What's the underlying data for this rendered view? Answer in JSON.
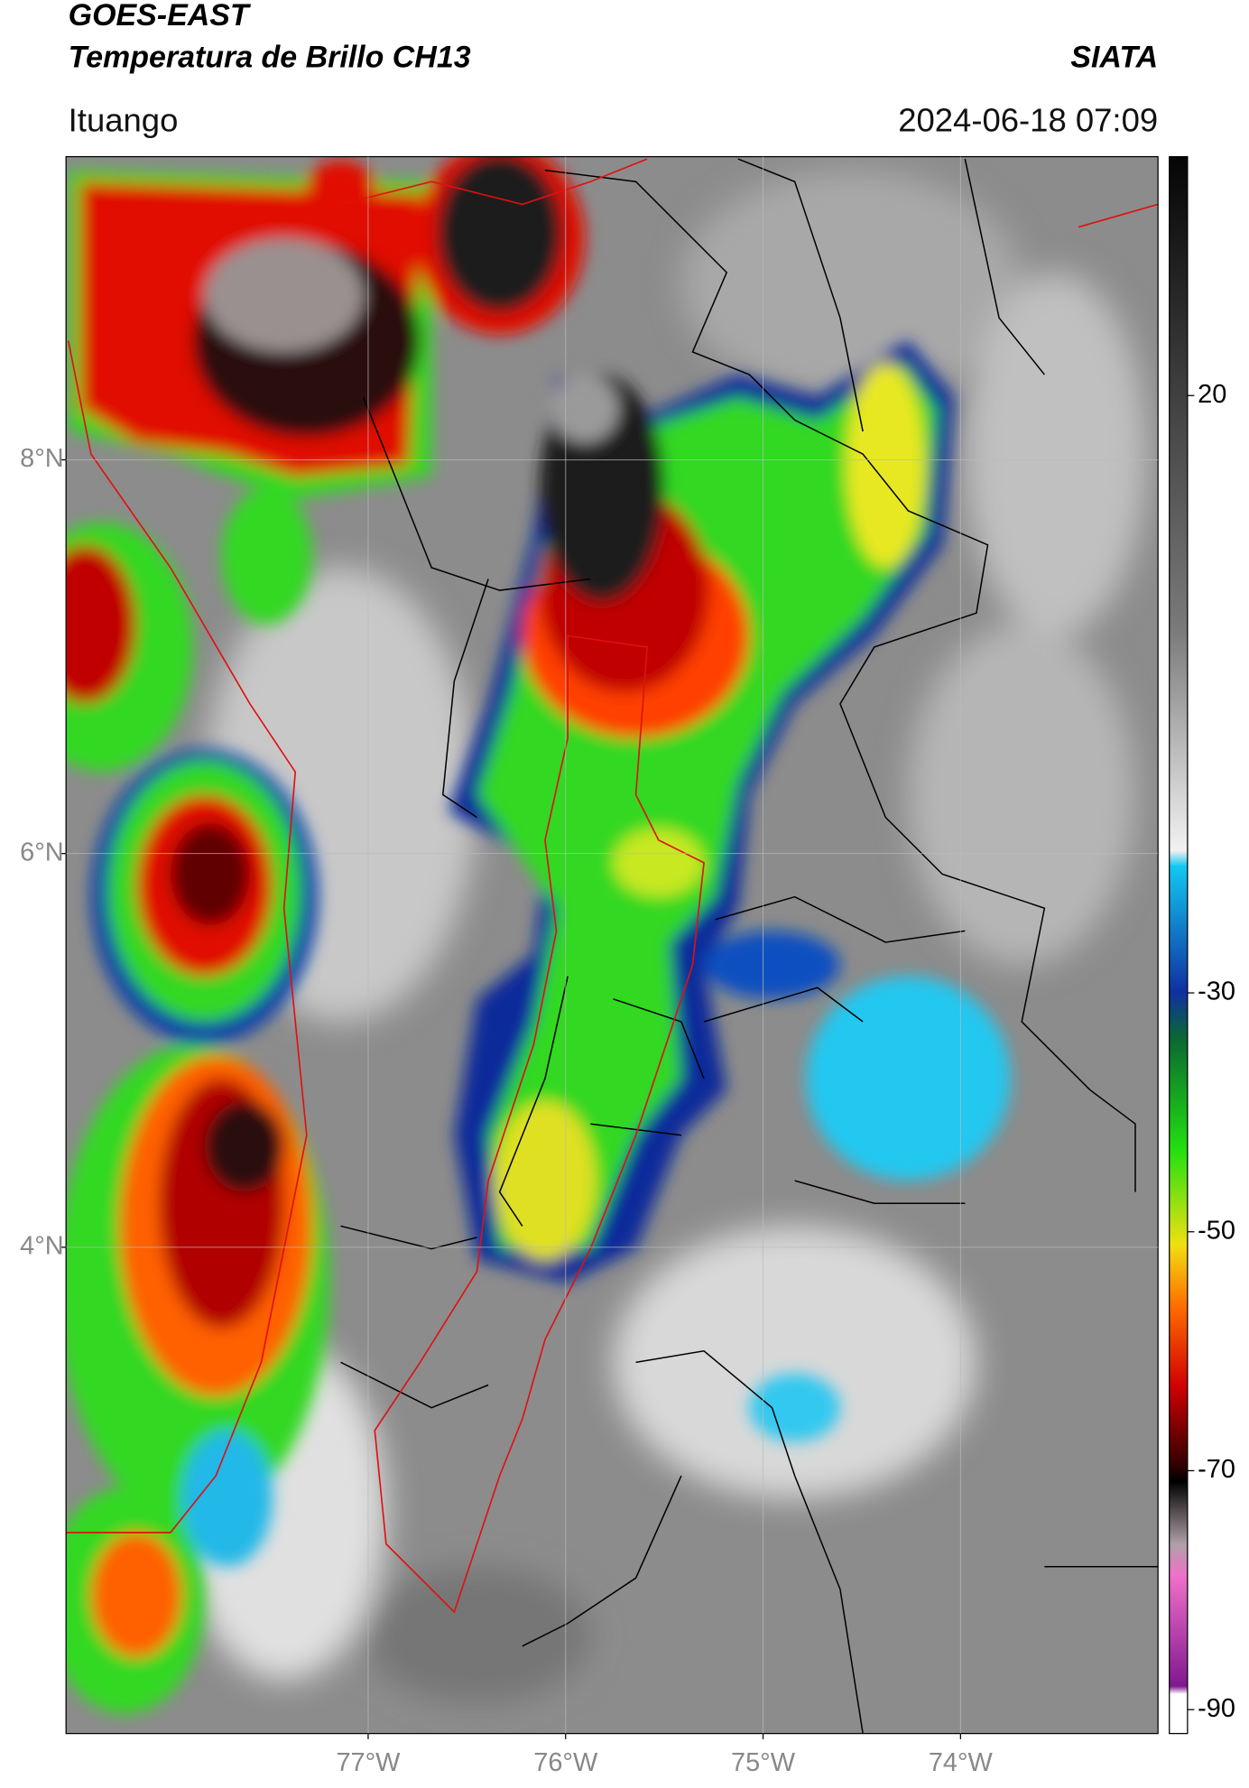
{
  "header": {
    "title": "GOES-EAST",
    "subtitle": "Temperatura de Brillo CH13",
    "source": "SIATA",
    "location": "Ituango",
    "datetime": "2024-06-18 07:09"
  },
  "map": {
    "xlim": [
      -78.53,
      -73.0
    ],
    "ylim": [
      1.53,
      9.54
    ],
    "xticks": [
      {
        "value": -77,
        "label": "77°W"
      },
      {
        "value": -76,
        "label": "76°W"
      },
      {
        "value": -75,
        "label": "75°W"
      },
      {
        "value": -74,
        "label": "74°W"
      }
    ],
    "yticks": [
      {
        "value": 8,
        "label": "8°N"
      },
      {
        "value": 6,
        "label": "6°N"
      },
      {
        "value": 4,
        "label": "4°N"
      }
    ],
    "grid": true
  },
  "colorbar": {
    "lim": [
      -92,
      40
    ],
    "ticks": [
      20,
      -30,
      -50,
      -70,
      -90
    ]
  }
}
